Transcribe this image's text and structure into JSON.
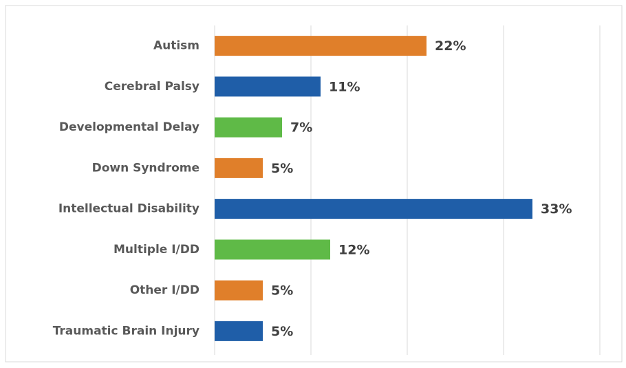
{
  "chart_data": {
    "type": "bar",
    "orientation": "horizontal",
    "categories": [
      "Autism",
      "Cerebral Palsy",
      "Developmental Delay",
      "Down Syndrome",
      "Intellectual Disability",
      "Multiple I/DD",
      "Other I/DD",
      "Traumatic Brain Injury"
    ],
    "values": [
      22,
      11,
      7,
      5,
      33,
      12,
      5,
      5
    ],
    "value_labels": [
      "22%",
      "11%",
      "7%",
      "5%",
      "33%",
      "12%",
      "5%",
      "5%"
    ],
    "colors": [
      "#e07f2a",
      "#1f5ea8",
      "#5fba47",
      "#e07f2a",
      "#1f5ea8",
      "#5fba47",
      "#e07f2a",
      "#1f5ea8"
    ],
    "xlim": [
      0,
      40
    ],
    "xticks": [
      0,
      10,
      20,
      30,
      40
    ],
    "grid": true
  }
}
